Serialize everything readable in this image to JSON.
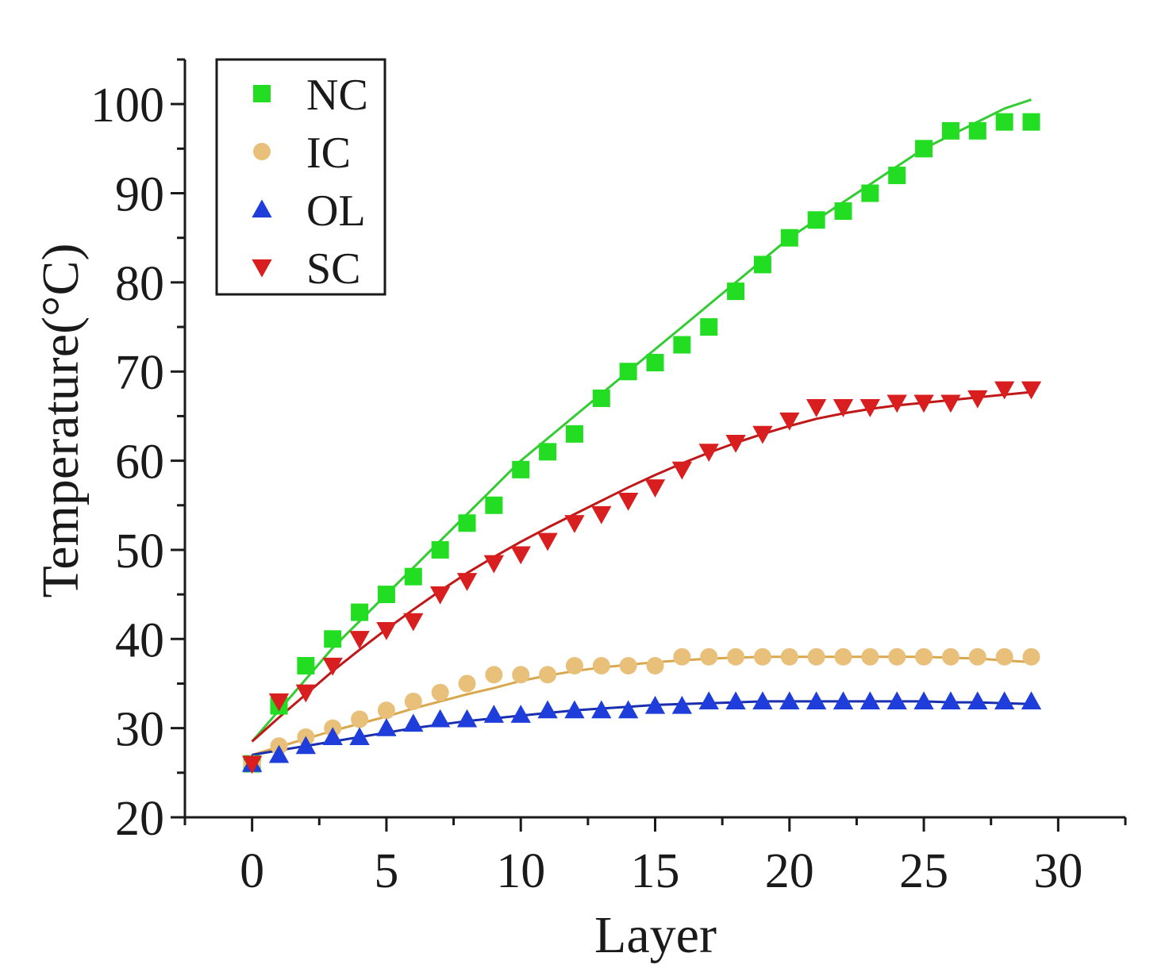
{
  "chart_data": {
    "type": "scatter",
    "title": "",
    "xlabel": "Layer",
    "ylabel": "Temperature(°C)",
    "xlim": [
      -2.5,
      32.5
    ],
    "ylim": [
      20,
      105
    ],
    "xticks": [
      "0",
      "5",
      "10",
      "15",
      "20",
      "25",
      "30"
    ],
    "yticks": [
      "20",
      "30",
      "40",
      "50",
      "60",
      "70",
      "80",
      "90",
      "100"
    ],
    "legend_position": "top-left",
    "series": [
      {
        "name": "NC",
        "marker": "square",
        "color": "#22dd22",
        "fit_color": "#33cc33",
        "x": [
          0,
          1,
          2,
          3,
          4,
          5,
          6,
          7,
          8,
          9,
          10,
          11,
          12,
          13,
          14,
          15,
          16,
          17,
          18,
          19,
          20,
          21,
          22,
          23,
          24,
          25,
          26,
          27,
          28,
          29
        ],
        "y": [
          26,
          32.5,
          37,
          40,
          43,
          45,
          47,
          50,
          53,
          55,
          59,
          61,
          63,
          67,
          70,
          71,
          73,
          75,
          79,
          82,
          85,
          87,
          88,
          90,
          92,
          95,
          97,
          97,
          98,
          98
        ],
        "fit": [
          28.5,
          32,
          35.5,
          39,
          42,
          45,
          48,
          51,
          54,
          57,
          60,
          62.5,
          65,
          67.5,
          70,
          72.5,
          75,
          77.5,
          80,
          82.5,
          85,
          87,
          89,
          91,
          93,
          95,
          96.5,
          98,
          99.5,
          100.5
        ]
      },
      {
        "name": "IC",
        "marker": "circle",
        "color": "#e8c07a",
        "fit_color": "#d9a84e",
        "x": [
          0,
          1,
          2,
          3,
          4,
          5,
          6,
          7,
          8,
          9,
          10,
          11,
          12,
          13,
          14,
          15,
          16,
          17,
          18,
          19,
          20,
          21,
          22,
          23,
          24,
          25,
          26,
          27,
          28,
          29
        ],
        "y": [
          26,
          28,
          29,
          30,
          31,
          32,
          33,
          34,
          35,
          36,
          36,
          36,
          37,
          37,
          37,
          37,
          38,
          38,
          38,
          38,
          38,
          38,
          38,
          38,
          38,
          38,
          38,
          38,
          38,
          38
        ],
        "fit": [
          27,
          27.9,
          28.8,
          29.7,
          30.5,
          31.3,
          32.2,
          33,
          33.8,
          34.5,
          35.3,
          35.9,
          36.4,
          36.8,
          37.1,
          37.4,
          37.6,
          37.8,
          37.9,
          38,
          38,
          38,
          38,
          38,
          38,
          38,
          37.9,
          37.8,
          37.6,
          37.4
        ]
      },
      {
        "name": "OL",
        "marker": "triangle-up",
        "color": "#1f3ddb",
        "fit_color": "#1a2fb0",
        "x": [
          0,
          1,
          2,
          3,
          4,
          5,
          6,
          7,
          8,
          9,
          10,
          11,
          12,
          13,
          14,
          15,
          16,
          17,
          18,
          19,
          20,
          21,
          22,
          23,
          24,
          25,
          26,
          27,
          28,
          29
        ],
        "y": [
          26,
          27,
          28,
          29,
          29,
          30,
          30.5,
          31,
          31,
          31.5,
          31.5,
          32,
          32,
          32,
          32,
          32.5,
          32.5,
          33,
          33,
          33,
          33,
          33,
          33,
          33,
          33,
          33,
          33,
          33,
          33,
          33
        ],
        "fit": [
          27,
          27.5,
          28,
          28.5,
          29,
          29.5,
          30,
          30.4,
          30.8,
          31.1,
          31.4,
          31.7,
          32,
          32.2,
          32.4,
          32.6,
          32.7,
          32.8,
          32.9,
          33,
          33,
          33,
          33,
          33,
          33,
          33,
          32.9,
          32.9,
          32.8,
          32.7
        ]
      },
      {
        "name": "SC",
        "marker": "triangle-down",
        "color": "#d81e1e",
        "fit_color": "#c01818",
        "x": [
          0,
          1,
          2,
          3,
          4,
          5,
          6,
          7,
          8,
          9,
          10,
          11,
          12,
          13,
          14,
          15,
          16,
          17,
          18,
          19,
          20,
          21,
          22,
          23,
          24,
          25,
          26,
          27,
          28,
          29
        ],
        "y": [
          26,
          33,
          34,
          37,
          40,
          41,
          42,
          45,
          46.5,
          48.5,
          49.5,
          51,
          53,
          54,
          55.5,
          57,
          59,
          61,
          62,
          63,
          64.5,
          66,
          66,
          66,
          66.5,
          66.5,
          66.5,
          67,
          68,
          68
        ],
        "fit": [
          28.5,
          31.2,
          33.8,
          36.4,
          38.8,
          41.1,
          43.3,
          45.4,
          47.4,
          49.2,
          50.9,
          52.5,
          54,
          55.5,
          57,
          58.4,
          59.7,
          60.9,
          62,
          63,
          63.9,
          64.7,
          65.3,
          65.8,
          66.2,
          66.5,
          66.8,
          67.1,
          67.4,
          67.7
        ]
      }
    ]
  }
}
